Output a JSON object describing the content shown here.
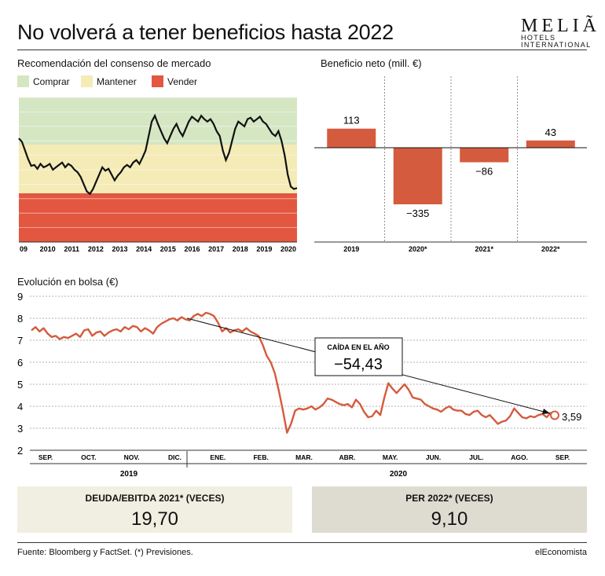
{
  "title": "No volverá a tener beneficios hasta 2022",
  "logo": {
    "name": "MELIÃ",
    "sub1": "HOTELS",
    "sub2": "INTERNATIONAL"
  },
  "colors": {
    "comprar": "#d5e6c3",
    "mantener": "#f4ebb7",
    "vender": "#e35640",
    "bar": "#d45b3e",
    "line": "#d45b3e",
    "box_left": "#f1efe1",
    "box_right": "#dedcd0"
  },
  "chart_data": [
    {
      "type": "line",
      "title": "Recomendación del consenso de mercado",
      "legend": [
        "Comprar",
        "Mantener",
        "Vender"
      ],
      "x_tick_labels": [
        "09",
        "2010",
        "2011",
        "2012",
        "2013",
        "2014",
        "2015",
        "2016",
        "2017",
        "2018",
        "2019",
        "2020"
      ],
      "note": "Consensus line over zones: Comprar (top), Mantener (middle), Vender (bottom)",
      "series": [
        {
          "values": [
            4.15,
            4.08,
            3.9,
            3.72,
            3.58,
            3.6,
            3.52,
            3.62,
            3.55,
            3.58,
            3.62,
            3.5,
            3.55,
            3.6,
            3.65,
            3.55,
            3.62,
            3.58,
            3.5,
            3.45,
            3.35,
            3.2,
            3.05,
            3.0,
            3.1,
            3.25,
            3.4,
            3.55,
            3.48,
            3.52,
            3.4,
            3.28,
            3.38,
            3.45,
            3.55,
            3.6,
            3.55,
            3.65,
            3.7,
            3.62,
            3.75,
            3.9,
            4.2,
            4.5,
            4.62,
            4.45,
            4.3,
            4.15,
            4.05,
            4.2,
            4.35,
            4.45,
            4.3,
            4.2,
            4.35,
            4.5,
            4.6,
            4.55,
            4.5,
            4.62,
            4.55,
            4.5,
            4.55,
            4.45,
            4.3,
            4.2,
            3.9,
            3.7,
            3.85,
            4.1,
            4.35,
            4.5,
            4.45,
            4.4,
            4.55,
            4.58,
            4.5,
            4.55,
            4.6,
            4.5,
            4.45,
            4.35,
            4.25,
            4.2,
            4.3,
            4.1,
            3.8,
            3.4,
            3.15,
            3.1,
            3.12
          ]
        }
      ]
    },
    {
      "type": "bar",
      "title": "Beneficio neto (mill. €)",
      "categories": [
        "2019",
        "2020*",
        "2021*",
        "2022*"
      ],
      "values": [
        113,
        -335,
        -86,
        43
      ],
      "value_labels": [
        "113",
        "−335",
        "−86",
        "43"
      ]
    },
    {
      "type": "line",
      "title": "Evolución en bolsa (€)",
      "ylim": [
        2,
        9
      ],
      "y_ticks": [
        "9",
        "8",
        "7",
        "6",
        "5",
        "4",
        "3",
        "2"
      ],
      "months": [
        "SEP.",
        "OCT.",
        "NOV.",
        "DIC.",
        "ENE.",
        "FEB.",
        "MAR.",
        "ABR.",
        "MAY.",
        "JUN.",
        "JUL.",
        "AGO.",
        "SEP."
      ],
      "years": [
        "2019",
        "2020"
      ],
      "series": [
        {
          "values": [
            7.45,
            7.6,
            7.4,
            7.55,
            7.3,
            7.15,
            7.2,
            7.05,
            7.15,
            7.1,
            7.2,
            7.3,
            7.15,
            7.45,
            7.5,
            7.2,
            7.35,
            7.4,
            7.2,
            7.35,
            7.45,
            7.5,
            7.4,
            7.6,
            7.5,
            7.65,
            7.6,
            7.4,
            7.55,
            7.45,
            7.3,
            7.6,
            7.75,
            7.85,
            7.95,
            8.0,
            7.9,
            8.05,
            7.95,
            7.9,
            8.1,
            8.2,
            8.1,
            8.25,
            8.2,
            8.1,
            7.8,
            7.4,
            7.55,
            7.35,
            7.45,
            7.5,
            7.4,
            7.55,
            7.4,
            7.3,
            7.2,
            6.8,
            6.3,
            6.0,
            5.5,
            4.7,
            3.8,
            2.8,
            3.2,
            3.8,
            3.9,
            3.85,
            3.9,
            4.0,
            3.85,
            3.95,
            4.1,
            4.35,
            4.3,
            4.2,
            4.1,
            4.05,
            4.1,
            3.95,
            4.3,
            4.1,
            3.75,
            3.5,
            3.55,
            3.8,
            3.6,
            4.4,
            5.05,
            4.8,
            4.6,
            4.8,
            5.0,
            4.75,
            4.4,
            4.35,
            4.3,
            4.1,
            4.0,
            3.9,
            3.85,
            3.75,
            3.9,
            4.0,
            3.85,
            3.8,
            3.8,
            3.65,
            3.6,
            3.75,
            3.8,
            3.6,
            3.5,
            3.6,
            3.4,
            3.2,
            3.3,
            3.35,
            3.55,
            3.9,
            3.7,
            3.5,
            3.45,
            3.55,
            3.5,
            3.6,
            3.65,
            3.5,
            3.7,
            3.59
          ]
        }
      ],
      "annotation": {
        "label": "CAÍDA EN EL AÑO",
        "value": "−54,43"
      },
      "last_value_label": "3,59"
    }
  ],
  "boxes": [
    {
      "label": "DEUDA/EBITDA 2021* (VECES)",
      "value": "19,70"
    },
    {
      "label": "PER 2022* (VECES)",
      "value": "9,10"
    }
  ],
  "footer": {
    "source": "Fuente: Bloomberg y FactSet. (*) Previsiones.",
    "brand": "elEconomista"
  }
}
